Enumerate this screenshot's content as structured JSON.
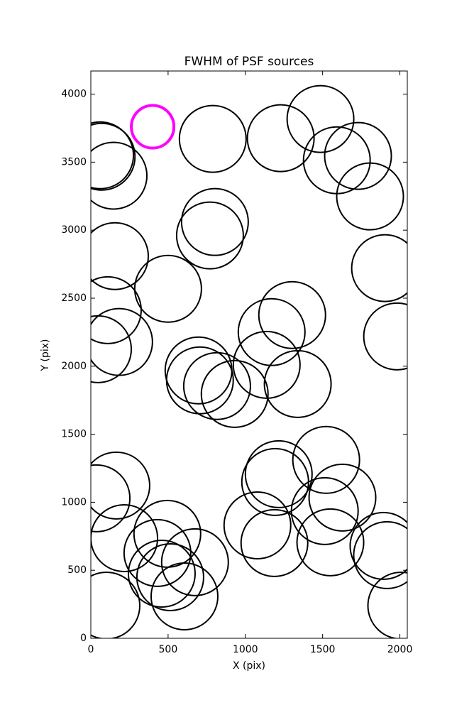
{
  "chart_data": {
    "type": "scatter",
    "title": "FWHM of PSF sources",
    "x_label": "X (pix)",
    "y_label": "Y (pix)",
    "xlim": [
      0,
      2048
    ],
    "ylim": [
      0,
      4170
    ],
    "xticks": [
      0,
      500,
      1000,
      1500,
      2000
    ],
    "yticks": [
      0,
      500,
      1000,
      1500,
      2000,
      2500,
      3000,
      3500,
      4000
    ],
    "series": [
      {
        "color": "#000000",
        "x": [
          70,
          60,
          147,
          789,
          1229,
          1486,
          1592,
          1729,
          1807,
          803,
          771,
          156,
          500,
          1904,
          110,
          183,
          46,
          1982,
          1303,
          1170,
          1138,
          1339,
          697,
          706,
          817,
          931,
          1523,
          1216,
          1193,
          1628,
          165,
          37,
          216,
          495,
          1078,
          1188,
          1514,
          1550,
          1894,
          1917,
          431,
          459,
          514,
          674,
          606,
          101,
          2009
        ],
        "values": [
          3540,
          3550,
          3400,
          3671,
          3676,
          3817,
          3514,
          3546,
          3248,
          3060,
          2961,
          2809,
          2569,
          2721,
          2412,
          2178,
          2125,
          2219,
          2376,
          2251,
          2010,
          1869,
          1969,
          1896,
          1854,
          1796,
          1311,
          1206,
          1149,
          1034,
          1123,
          1029,
          736,
          768,
          830,
          700,
          935,
          705,
          679,
          611,
          627,
          475,
          449,
          559,
          308,
          240,
          240
        ]
      },
      {
        "color": "#ff00ff",
        "x": [
          400
        ],
        "values": [
          3760
        ]
      }
    ]
  }
}
